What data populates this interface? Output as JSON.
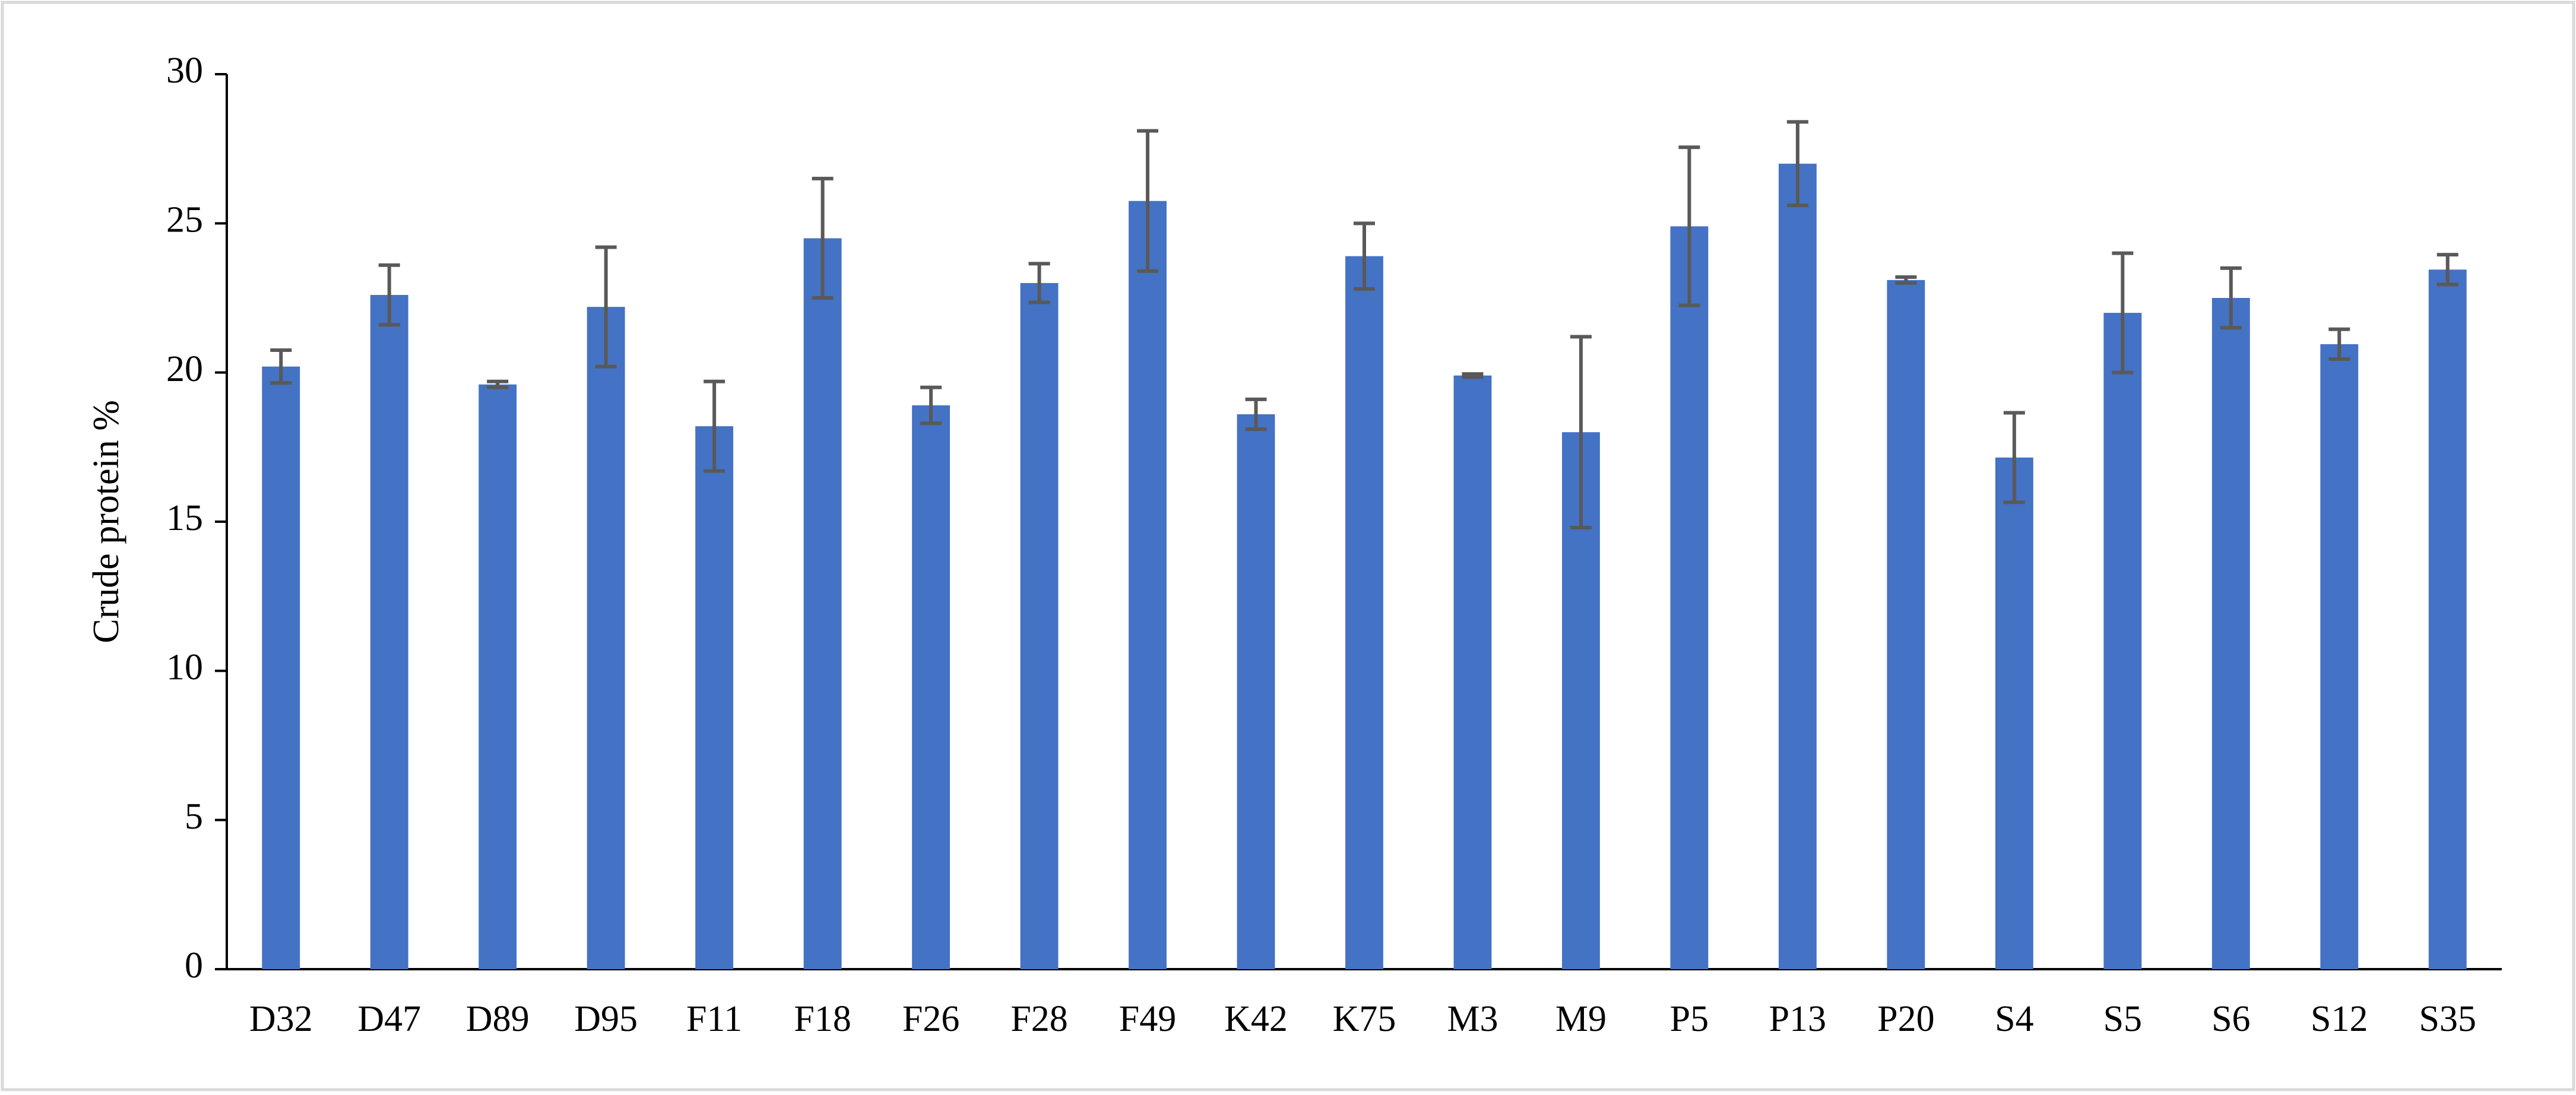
{
  "chart_data": {
    "type": "bar",
    "ylabel": "Crude protein %",
    "categories": [
      "D32",
      "D47",
      "D89",
      "D95",
      "F11",
      "F18",
      "F26",
      "F28",
      "F49",
      "K42",
      "K75",
      "M3",
      "M9",
      "P5",
      "P13",
      "P20",
      "S4",
      "S5",
      "S6",
      "S12",
      "S35"
    ],
    "values": [
      20.2,
      22.6,
      19.6,
      22.2,
      18.2,
      24.5,
      18.9,
      23.0,
      25.75,
      18.6,
      23.9,
      19.9,
      18.0,
      24.9,
      27.0,
      23.1,
      17.15,
      22.0,
      22.5,
      20.95,
      23.45
    ],
    "errors": [
      0.55,
      1.0,
      0.1,
      2.0,
      1.5,
      2.0,
      0.6,
      0.65,
      2.35,
      0.5,
      1.1,
      0.05,
      3.2,
      2.65,
      1.4,
      0.1,
      1.5,
      2.0,
      1.0,
      0.5,
      0.5
    ],
    "color": "#4472c4",
    "error_color": "#595959",
    "ylim": [
      0,
      30
    ],
    "yticks": [
      0,
      5,
      10,
      15,
      20,
      25,
      30
    ],
    "grid": false
  }
}
